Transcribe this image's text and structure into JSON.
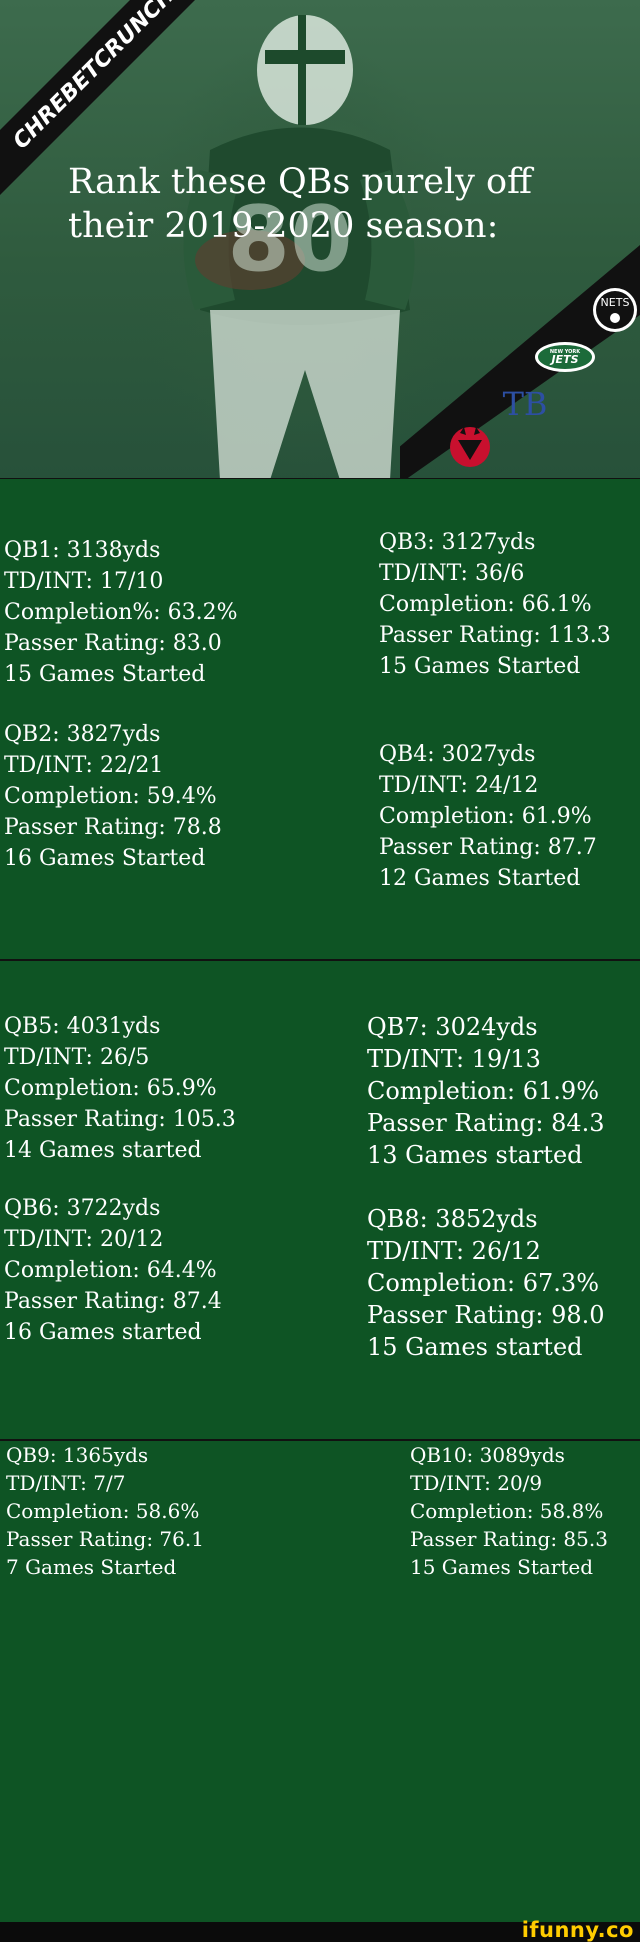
{
  "hero": {
    "watermark": "CHREBETCRUNCH",
    "title_line1": "Rank these QBs purely off",
    "title_line2": "their 2019-2020 season:",
    "logos": {
      "nets": "NETS",
      "jets_top": "NEW YORK",
      "jets": "JETS",
      "lightning": "TB"
    }
  },
  "sections": [
    {
      "left": [
        {
          "line1": "QB1: 3138yds",
          "line2": "TD/INT: 17/10",
          "line3": "Completion%: 63.2%",
          "line4": "Passer Rating: 83.0",
          "line5": "15 Games Started"
        },
        {
          "line1": "QB2: 3827yds",
          "line2": "TD/INT: 22/21",
          "line3": "Completion: 59.4%",
          "line4": "Passer Rating: 78.8",
          "line5": "16 Games Started"
        }
      ],
      "right": [
        {
          "line1": "QB3: 3127yds",
          "line2": "TD/INT: 36/6",
          "line3": "Completion: 66.1%",
          "line4": "Passer Rating: 113.3",
          "line5": "15 Games Started"
        },
        {
          "line1": "QB4: 3027yds",
          "line2": "TD/INT: 24/12",
          "line3": "Completion: 61.9%",
          "line4": "Passer Rating: 87.7",
          "line5": "12 Games Started"
        }
      ]
    },
    {
      "left": [
        {
          "line1": "QB5: 4031yds",
          "line2": "TD/INT: 26/5",
          "line3": "Completion: 65.9%",
          "line4": "Passer Rating: 105.3",
          "line5": "14 Games started"
        },
        {
          "line1": "QB6: 3722yds",
          "line2": "TD/INT: 20/12",
          "line3": "Completion: 64.4%",
          "line4": "Passer Rating: 87.4",
          "line5": "16 Games started"
        }
      ],
      "right": [
        {
          "line1": "QB7: 3024yds",
          "line2": "TD/INT: 19/13",
          "line3": "Completion: 61.9%",
          "line4": "Passer Rating: 84.3",
          "line5": "13 Games started"
        },
        {
          "line1": "QB8: 3852yds",
          "line2": "TD/INT: 26/12",
          "line3": "Completion: 67.3%",
          "line4": "Passer Rating: 98.0",
          "line5": "15 Games started"
        }
      ]
    },
    {
      "left": [
        {
          "line1": "QB9: 1365yds",
          "line2": "TD/INT: 7/7",
          "line3": "Completion: 58.6%",
          "line4": "Passer Rating: 76.1",
          "line5": "7 Games Started"
        }
      ],
      "right": [
        {
          "line1": "QB10: 3089yds",
          "line2": "TD/INT: 20/9",
          "line3": "Completion: 58.8%",
          "line4": "Passer Rating: 85.3",
          "line5": "15 Games Started"
        }
      ]
    }
  ],
  "footer": {
    "brand": "ifunny.co"
  },
  "colors": {
    "section_bg": "#0e5424",
    "hero_tint": "#2f5b3e",
    "brand_yellow": "#ffcc00",
    "devils_red": "#c8102e"
  }
}
